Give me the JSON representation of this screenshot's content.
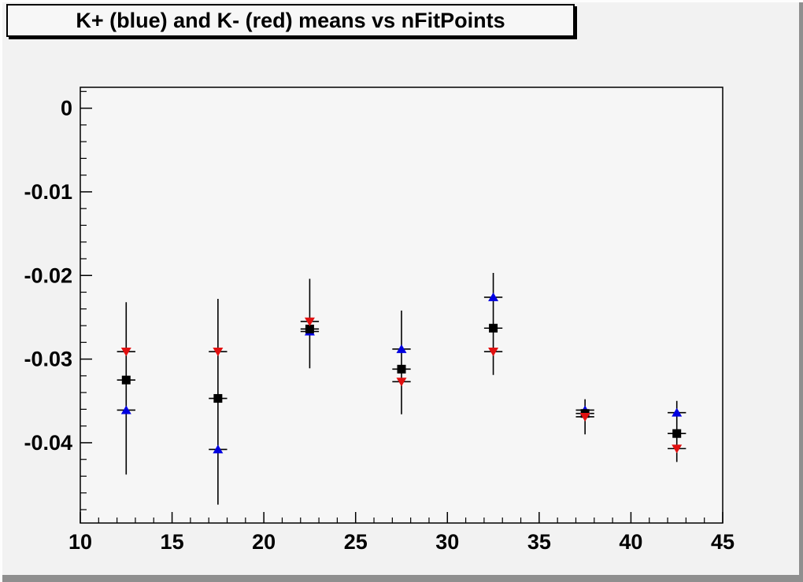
{
  "title_box": {
    "text": "K+ (blue) and K- (red) means vs nFitPoints"
  },
  "colors": {
    "canvas_bg": "#f2f2f2",
    "frame_bg": "#f6f6f6",
    "axis": "#000000",
    "kplus_blue": "#0000e0",
    "kminus_red": "#e01010",
    "mean_black": "#000000",
    "border_highlight": "#fdfdfd",
    "border_shadow": "#8f8f8f"
  },
  "chart_data": {
    "type": "scatter",
    "title": "K+ (blue) and K- (red) means vs nFitPoints",
    "xlabel": "",
    "ylabel": "",
    "xlim": [
      10,
      45
    ],
    "ylim": [
      -0.0496,
      0.0025
    ],
    "grid": false,
    "legend": "none",
    "x_major_ticks": [
      10,
      15,
      20,
      25,
      30,
      35,
      40,
      45
    ],
    "x_minor_step": 1,
    "y_major_ticks": [
      0,
      -0.01,
      -0.02,
      -0.03,
      -0.04
    ],
    "y_tick_labels": [
      "0",
      "-0.01",
      "-0.02",
      "-0.03",
      "-0.04"
    ],
    "y_minor_step": 0.002,
    "x": [
      12.5,
      17.5,
      22.5,
      27.5,
      32.5,
      37.5,
      42.5
    ],
    "xerr": 0.5,
    "series": [
      {
        "name": "K+ (blue)",
        "marker": "triangle-up",
        "color": "#0000e0",
        "values": [
          -0.0361,
          -0.0408,
          -0.0267,
          -0.0288,
          -0.0226,
          -0.0361,
          -0.0364
        ]
      },
      {
        "name": "mean (black)",
        "marker": "square",
        "color": "#000000",
        "values": [
          -0.0325,
          -0.0347,
          -0.0264,
          -0.0312,
          -0.0263,
          -0.0365,
          -0.0389
        ],
        "err_lo": [
          -0.0438,
          -0.0474,
          -0.0311,
          -0.0366,
          -0.0319,
          -0.039,
          -0.0423
        ],
        "err_hi": [
          -0.0232,
          -0.0228,
          -0.0204,
          -0.0242,
          -0.0197,
          -0.0348,
          -0.035
        ]
      },
      {
        "name": "K- (red)",
        "marker": "triangle-down",
        "color": "#e01010",
        "values": [
          -0.0291,
          -0.0291,
          -0.0255,
          -0.0327,
          -0.0291,
          -0.0369,
          -0.0407
        ]
      }
    ]
  }
}
